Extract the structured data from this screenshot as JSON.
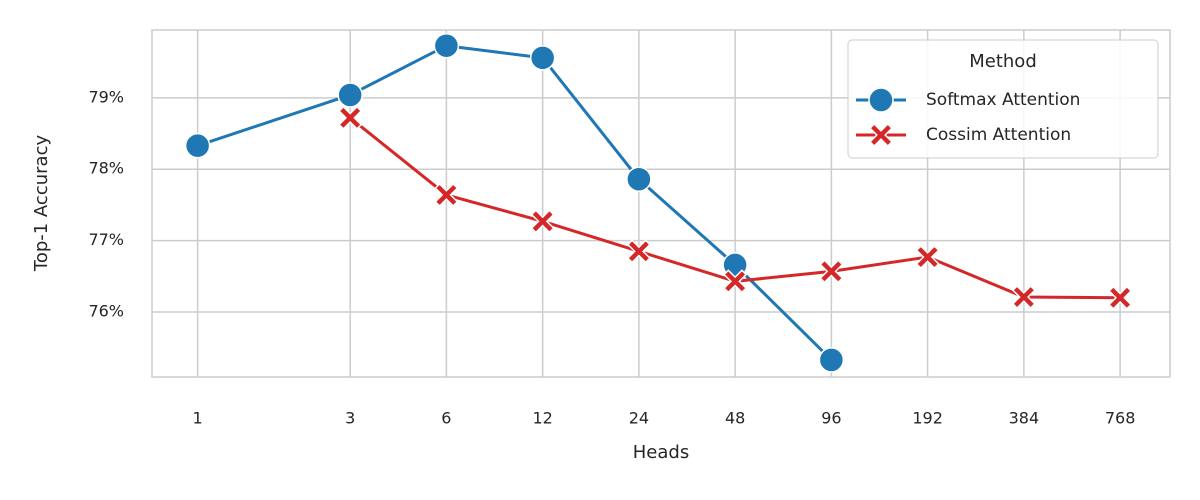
{
  "chart_data": {
    "type": "line",
    "xlabel": "Heads",
    "ylabel": "Top-1 Accuracy",
    "legend_title": "Method",
    "legend": "upper right",
    "grid": true,
    "xscale": "log",
    "xlog_base": 2,
    "xlim": [
      0.72,
      1100
    ],
    "xticks": [
      1,
      3,
      6,
      12,
      24,
      48,
      96,
      192,
      384,
      768
    ],
    "ylim": [
      75.09,
      79.95
    ],
    "yticks": [
      {
        "value": 76,
        "label": "76%"
      },
      {
        "value": 77,
        "label": "77%"
      },
      {
        "value": 78,
        "label": "78%"
      },
      {
        "value": 79,
        "label": "79%"
      }
    ],
    "series": [
      {
        "name": "Softmax Attention",
        "color": "#1f77b4",
        "marker": "circle",
        "x": [
          1,
          3,
          6,
          12,
          24,
          48,
          96
        ],
        "values": [
          78.33,
          79.04,
          79.73,
          79.56,
          77.86,
          76.66,
          75.33
        ]
      },
      {
        "name": "Cossim Attention",
        "color": "#d62728",
        "marker": "x",
        "x": [
          3,
          6,
          12,
          24,
          48,
          96,
          192,
          384,
          768
        ],
        "values": [
          78.72,
          77.64,
          77.27,
          76.85,
          76.43,
          76.57,
          76.77,
          76.21,
          76.2
        ]
      }
    ]
  }
}
